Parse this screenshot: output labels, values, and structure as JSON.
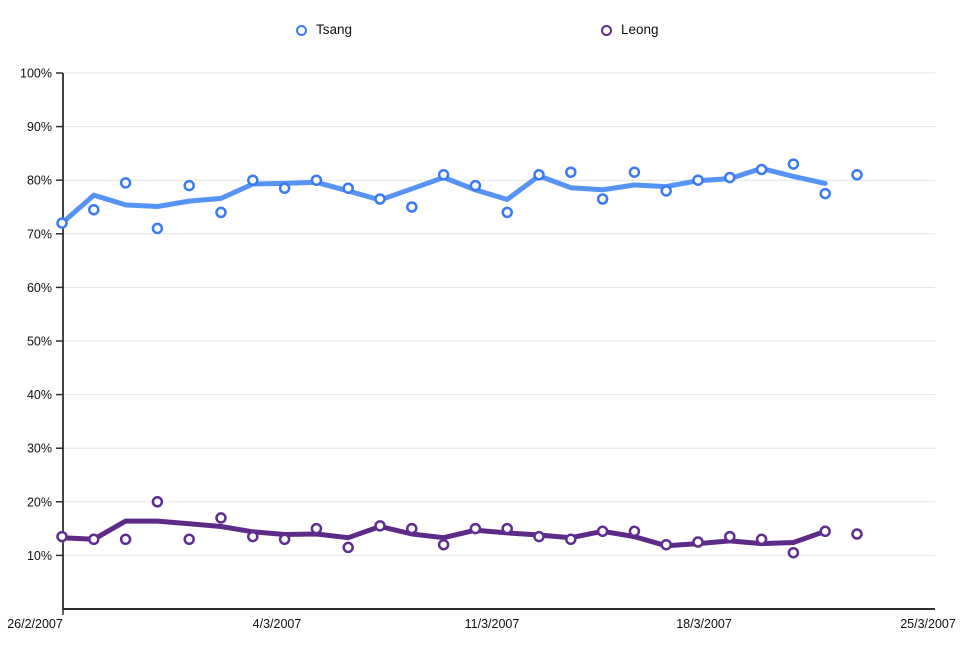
{
  "chart_data": {
    "type": "line",
    "title": "",
    "description": "Daily poll tracking chart with open-circle data points and thick smoothed trend lines for two candidates",
    "legend_position": "top",
    "grid": true,
    "x_axis": {
      "tick_labels": [
        "26/2/2007",
        "4/3/2007",
        "11/3/2007",
        "18/3/2007",
        "25/3/2007"
      ]
    },
    "y_axis": {
      "unit": "%",
      "min": 0,
      "max": 100,
      "tick_labels": [
        "100%",
        "90%",
        "80%",
        "70%",
        "60%",
        "50%",
        "40%",
        "30%",
        "20%",
        "10%"
      ],
      "tick_values": [
        100,
        90,
        80,
        70,
        60,
        50,
        40,
        30,
        20,
        10
      ]
    },
    "series": [
      {
        "name": "Tsang",
        "marker_color": "#3a7bf2",
        "line_color": "#5593f5",
        "points": [
          72,
          74.5,
          79.5,
          71,
          79,
          74,
          80,
          78.5,
          80,
          78.5,
          76.5,
          75,
          81,
          79,
          74,
          81,
          81.5,
          76.5,
          81.5,
          78,
          80,
          80.5,
          82,
          83,
          77.5,
          81
        ],
        "trend": [
          72,
          77.2,
          75.4,
          75.1,
          76.1,
          76.6,
          79.3,
          79.4,
          79.6,
          78.0,
          76.3,
          78.4,
          80.5,
          78.2,
          76.4,
          80.8,
          78.6,
          78.2,
          79.1,
          78.8,
          79.9,
          80.3,
          82.2,
          80.7,
          79.4,
          null
        ]
      },
      {
        "name": "Leong",
        "marker_color": "#5e2d91",
        "line_color": "#5e2a87",
        "points": [
          13.5,
          13,
          13,
          20,
          13,
          17,
          13.5,
          13,
          15,
          11.5,
          15.5,
          15,
          12,
          15,
          15,
          13.5,
          13,
          14.5,
          14.5,
          12,
          12.5,
          13.5,
          13,
          10.5,
          14.5,
          14
        ],
        "trend": [
          13.3,
          13.0,
          16.4,
          16.4,
          15.9,
          15.4,
          14.4,
          13.9,
          14.0,
          13.3,
          15.4,
          14.0,
          13.3,
          14.7,
          14.2,
          13.8,
          13.3,
          14.5,
          13.5,
          11.8,
          12.2,
          12.7,
          12.2,
          12.4,
          14.5,
          null
        ]
      }
    ],
    "colors": {
      "axis": "#2e2e2e",
      "gridline": "#e4e4e4",
      "tick_text": "#111111",
      "background": "#ffffff"
    }
  }
}
